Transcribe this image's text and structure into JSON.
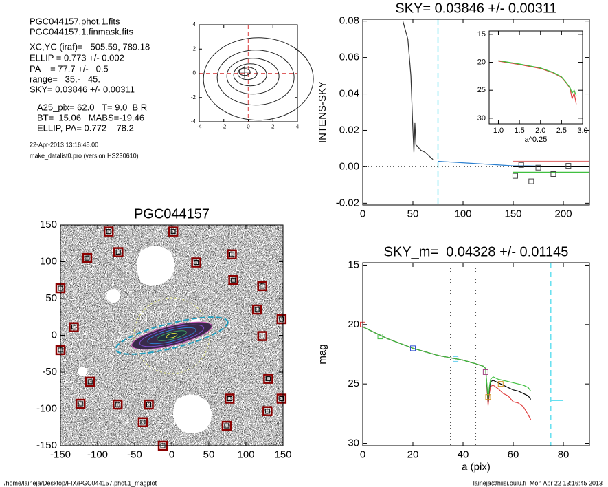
{
  "header": {
    "lines": [
      "PGC044157.phot.1.fits",
      "PGC044157.1.finmask.fits",
      "XC,YC (iraf)=   505.59, 789.18",
      "ELLIP = 0.773 +/- 0.002",
      "PA    = 77.7 +/-   0.5",
      "range=   35.-   45.",
      "SKY= 0.03846 +/- 0.00311",
      "A25_pix= 62.0   T= 9.0  B R",
      "BT=  15.06   MABS=-19.46",
      "ELLIP, PA= 0.772    78.2"
    ],
    "date": "22-Apr-2013 13:16:45.00",
    "program": "make_datalist0.pro (version HS230610)"
  },
  "footer": {
    "path": "/home/laineja/Desktop/FIX/PGC044157.phot.1_magplot",
    "user": "laineja@hiisi.oulu.fi  Mon Apr 22 13:16:45 2013"
  },
  "chart_data": [
    {
      "type": "contour",
      "xlim": [
        -4,
        4
      ],
      "ylim": [
        -4,
        4
      ],
      "xticks": [
        -4,
        -2,
        0,
        2,
        4
      ],
      "yticks": [
        -4,
        -2,
        0,
        2,
        4
      ],
      "vlines": [
        {
          "value": 0,
          "color": "#e06060",
          "dash": "6 4"
        }
      ],
      "hlines": [
        {
          "value": 0,
          "color": "#e06060",
          "dash": "6 4"
        }
      ]
    },
    {
      "type": "line",
      "title": "SKY= 0.03846 +/- 0.00311",
      "ylabel": "INTENS-SKY",
      "xlim": [
        0,
        226
      ],
      "ylim": [
        -0.021,
        0.081
      ],
      "xticks": [
        0,
        50,
        100,
        150,
        200
      ],
      "yticks": [
        {
          "value": -0.02,
          "label": "-0.02"
        },
        {
          "value": 0,
          "label": "0.00"
        },
        {
          "value": 0.02,
          "label": "0.02"
        },
        {
          "value": 0.04,
          "label": "0.04"
        },
        {
          "value": 0.06,
          "label": "0.06"
        },
        {
          "value": 0.08,
          "label": "0.08"
        }
      ],
      "vlines": [
        {
          "value": 75,
          "color": "#66e0f0",
          "dash": "8 5"
        }
      ],
      "hlines": [
        {
          "value": 0,
          "color": "#555",
          "dash": "1 3"
        }
      ],
      "series": [
        {
          "mark": "line",
          "color": "#333",
          "x": [
            40,
            45,
            48,
            50,
            51,
            52,
            53,
            55,
            58,
            62,
            66,
            70
          ],
          "values": [
            0.08,
            0.07,
            0.05,
            0.02,
            0.008,
            0.024,
            0.012,
            0.011,
            0.009,
            0.008,
            0.006,
            0.004
          ]
        },
        {
          "mark": "line",
          "color": "#2a7fd0",
          "x": [
            75,
            90,
            105,
            120,
            135,
            150,
            165,
            180,
            200,
            226
          ],
          "values": [
            0.003,
            0.0025,
            0.002,
            0.0015,
            0.001,
            0.0005,
            0.0005,
            0.0003,
            0.0002,
            0.0001
          ]
        },
        {
          "mark": "line",
          "color": "#e07070",
          "x": [
            150,
            226
          ],
          "values": [
            0.003,
            0.003
          ]
        },
        {
          "mark": "line",
          "color": "#000",
          "x": [
            150,
            226
          ],
          "values": [
            0,
            0
          ]
        },
        {
          "mark": "line",
          "color": "#40c040",
          "x": [
            150,
            226
          ],
          "values": [
            -0.003,
            -0.003
          ]
        },
        {
          "mark": "square",
          "color": "#444",
          "x": [
            152,
            158,
            168,
            175,
            190,
            205
          ],
          "values": [
            -0.005,
            0.001,
            -0.008,
            -0.0005,
            -0.004,
            0.0005
          ]
        }
      ]
    },
    {
      "type": "line",
      "xlabel": "a^0.25",
      "xlim": [
        0.78,
        3.0
      ],
      "ylim": [
        31,
        14.4
      ],
      "xticks": [
        {
          "value": 1,
          "label": "1.0"
        },
        {
          "value": 1.5,
          "label": "1.5"
        },
        {
          "value": 2,
          "label": "2.0"
        },
        {
          "value": 2.5,
          "label": "2.5"
        },
        {
          "value": 3,
          "label": "3.0"
        }
      ],
      "yticks": [
        15,
        20,
        25,
        30
      ],
      "series": [
        {
          "mark": "line",
          "color": "#e04040",
          "x": [
            1.0,
            1.5,
            2.0,
            2.3,
            2.5,
            2.6,
            2.7,
            2.75,
            2.8,
            2.85
          ],
          "values": [
            19.8,
            20.4,
            21.1,
            21.9,
            22.7,
            23.6,
            24.6,
            26.5,
            25.5,
            27.5
          ]
        },
        {
          "mark": "line",
          "color": "#40c040",
          "x": [
            1.0,
            1.5,
            2.0,
            2.3,
            2.5,
            2.6,
            2.7,
            2.75,
            2.8,
            2.85
          ],
          "values": [
            19.7,
            20.3,
            21.0,
            21.8,
            22.6,
            23.5,
            24.5,
            25.5,
            25.0,
            26.0
          ]
        }
      ]
    },
    {
      "type": "scatter",
      "title": "PGC044157",
      "xlim": [
        -150,
        150
      ],
      "ylim": [
        -150,
        150
      ],
      "xticks": [
        -150,
        -100,
        -50,
        0,
        50,
        100,
        150
      ],
      "yticks": [
        -150,
        -100,
        -50,
        0,
        50,
        100,
        150
      ],
      "series": [
        {
          "mark": "square",
          "color": "#8b0000",
          "x": [
            -85,
            2,
            -72,
            -114,
            81,
            33,
            83,
            122,
            -150,
            115,
            148,
            -132,
            122,
            -150,
            -110,
            130,
            -123,
            -73,
            -31,
            78,
            148,
            129,
            -39,
            74,
            -12
          ],
          "values": [
            141,
            141,
            113,
            105,
            110,
            99,
            75,
            67,
            64,
            35,
            22,
            11,
            -1,
            -20,
            -63,
            -59,
            -93,
            -94,
            -94,
            -86,
            -86,
            -103,
            -118,
            -123,
            -150
          ]
        }
      ]
    },
    {
      "type": "line",
      "title": "SKY_m=  0.04328 +/- 0.01145",
      "xlabel": "a (pix)",
      "ylabel": "mag",
      "xlim": [
        0,
        90.4
      ],
      "ylim": [
        30.2,
        14.8
      ],
      "xticks": [
        0,
        20,
        40,
        60,
        80
      ],
      "yticks": [
        15,
        20,
        25,
        30
      ],
      "vlines": [
        {
          "value": 35,
          "color": "#555",
          "dash": "1 3"
        },
        {
          "value": 45,
          "color": "#555",
          "dash": "1 3"
        },
        {
          "value": 75,
          "color": "#66e0f0",
          "dash": "8 5"
        }
      ],
      "series": [
        {
          "mark": "line",
          "color": "#e04040",
          "x": [
            0,
            5,
            10,
            15,
            20,
            25,
            30,
            35,
            40,
            45,
            48,
            49,
            50,
            50.5,
            51,
            52,
            54,
            56,
            58,
            60,
            62,
            64,
            66,
            67
          ],
          "values": [
            20.2,
            20.7,
            21.2,
            21.6,
            22.0,
            22.3,
            22.6,
            22.8,
            23.0,
            23.3,
            23.5,
            23.7,
            26.8,
            25.8,
            25.2,
            25.1,
            25.4,
            25.8,
            26.0,
            26.5,
            26.6,
            26.9,
            27.6,
            28.0
          ]
        },
        {
          "mark": "line",
          "color": "#000",
          "x": [
            0,
            5,
            10,
            15,
            20,
            25,
            30,
            35,
            40,
            45,
            48,
            49,
            50,
            50.5,
            51,
            52,
            54,
            56,
            58,
            60,
            62,
            64,
            66,
            67
          ],
          "values": [
            20.2,
            20.7,
            21.2,
            21.6,
            22.0,
            22.3,
            22.6,
            22.8,
            23.0,
            23.3,
            23.5,
            23.7,
            26.5,
            25.4,
            24.8,
            24.7,
            24.9,
            25.1,
            25.3,
            25.5,
            25.6,
            25.8,
            26.0,
            26.3
          ]
        },
        {
          "mark": "line",
          "color": "#40c040",
          "x": [
            0,
            5,
            10,
            15,
            20,
            25,
            30,
            35,
            40,
            45,
            48,
            49,
            50,
            50.5,
            51,
            52,
            54,
            56,
            58,
            60,
            62,
            64,
            66,
            67
          ],
          "values": [
            20.2,
            20.7,
            21.2,
            21.6,
            22.0,
            22.3,
            22.6,
            22.8,
            23.0,
            23.3,
            23.5,
            23.7,
            26.3,
            25.2,
            24.6,
            24.4,
            24.6,
            24.7,
            24.8,
            24.9,
            25.0,
            25.1,
            25.3,
            25.6
          ]
        },
        {
          "mark": "line",
          "color": "#66e0f0",
          "x": [
            75,
            80
          ],
          "values": [
            26.4,
            26.4
          ]
        },
        {
          "mark": "square",
          "color": "#e04040",
          "x": [
            0
          ],
          "values": [
            20
          ]
        },
        {
          "mark": "square",
          "color": "#40c040",
          "x": [
            7
          ],
          "values": [
            21
          ]
        },
        {
          "mark": "square",
          "color": "#3050d0",
          "x": [
            20
          ],
          "values": [
            22
          ]
        },
        {
          "mark": "square",
          "color": "#66d0f0",
          "x": [
            37
          ],
          "values": [
            22.9
          ]
        },
        {
          "mark": "square",
          "color": "#a04080",
          "x": [
            49
          ],
          "values": [
            24
          ]
        },
        {
          "mark": "square",
          "color": "#d09020",
          "x": [
            50,
            55
          ],
          "values": [
            26.1,
            25
          ]
        }
      ]
    }
  ]
}
